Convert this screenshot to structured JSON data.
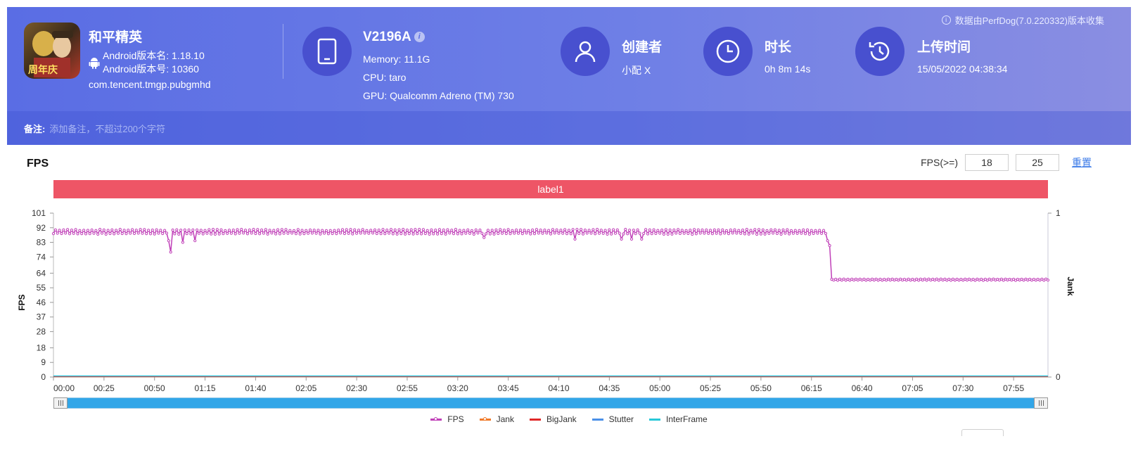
{
  "app": {
    "name": "和平精英",
    "android_version_name": "Android版本名: 1.18.10",
    "android_version_code": "Android版本号: 10360",
    "package": "com.tencent.tmgp.pubgmhd",
    "icon_text": "周年庆"
  },
  "device": {
    "model": "V2196A",
    "memory": "Memory: 11.1G",
    "cpu": "CPU: taro",
    "gpu": "GPU: Qualcomm Adreno (TM) 730"
  },
  "creator": {
    "label": "创建者",
    "value": "小配 X"
  },
  "duration": {
    "label": "时长",
    "value": "0h 8m 14s"
  },
  "upload": {
    "label": "上传时间",
    "value": "15/05/2022 04:38:34"
  },
  "source": "数据由PerfDog(7.0.220332)版本收集",
  "note": {
    "label": "备注:",
    "placeholder": "添加备注，不超过200个字符"
  },
  "chart_section": {
    "title": "FPS",
    "filter_label": "FPS(>=)",
    "threshold1": "18",
    "threshold2": "25",
    "reset_label": "重置",
    "label_bar": "label1"
  },
  "colors": {
    "fps": "#c040b8",
    "jank": "#f07a2a",
    "bigjank": "#e02828",
    "stutter": "#4a90e8",
    "interframe": "#28c8d8",
    "label_bar": "#ee5566"
  },
  "legend": [
    "FPS",
    "Jank",
    "BigJank",
    "Stutter",
    "InterFrame"
  ],
  "chart_data": {
    "type": "line",
    "ylabel": "FPS",
    "y2label": "Jank",
    "y_ticks": [
      0,
      9,
      18,
      28,
      37,
      46,
      55,
      64,
      74,
      83,
      92,
      101
    ],
    "ylim": [
      0,
      101
    ],
    "y2_ticks": [
      0,
      1
    ],
    "x_tick_labels": [
      "00:00",
      "00:25",
      "00:50",
      "01:15",
      "01:40",
      "02:05",
      "02:30",
      "02:55",
      "03:20",
      "03:45",
      "04:10",
      "04:35",
      "05:00",
      "05:25",
      "05:50",
      "06:15",
      "06:40",
      "07:05",
      "07:30",
      "07:55"
    ],
    "x_tick_seconds": [
      0,
      25,
      50,
      75,
      100,
      125,
      150,
      175,
      200,
      225,
      250,
      275,
      300,
      325,
      350,
      375,
      400,
      425,
      450,
      475
    ],
    "xlim_seconds": [
      0,
      492
    ],
    "series": [
      {
        "name": "FPS",
        "description_of_segments": "≈89-90 fps from 00:00 to 06:24 with dips to 77 (~00:58) and ~84; sharp drop at ~06:25 to ≈60 fps through 08:12",
        "segments": [
          {
            "from": 0,
            "to": 384,
            "base": 89.5,
            "jitter": 1.5
          },
          {
            "from": 385,
            "to": 492,
            "base": 60,
            "jitter": 0.4
          }
        ],
        "dips": [
          {
            "t": 57,
            "v": 84
          },
          {
            "t": 58,
            "v": 77
          },
          {
            "t": 64,
            "v": 83
          },
          {
            "t": 70,
            "v": 84
          },
          {
            "t": 213,
            "v": 86
          },
          {
            "t": 258,
            "v": 85
          },
          {
            "t": 281,
            "v": 85
          },
          {
            "t": 286,
            "v": 85
          },
          {
            "t": 291,
            "v": 85
          },
          {
            "t": 383,
            "v": 84
          },
          {
            "t": 384,
            "v": 81
          }
        ]
      },
      {
        "name": "Jank",
        "values_all": 0
      },
      {
        "name": "BigJank",
        "values_all": 0
      },
      {
        "name": "Stutter",
        "values_all": 0
      },
      {
        "name": "InterFrame",
        "values_all": 0
      }
    ]
  }
}
